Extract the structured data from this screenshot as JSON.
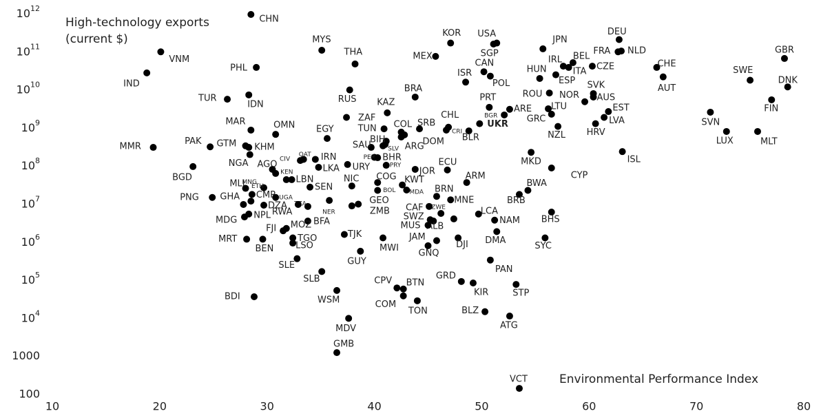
{
  "chart_data": {
    "type": "scatter",
    "annotations": [
      "High-technology exports",
      "(current $)",
      "Environmental Performance Index"
    ],
    "xlim": [
      10,
      80
    ],
    "xticks": [
      10,
      20,
      30,
      40,
      50,
      60,
      70,
      80
    ],
    "ylim": [
      100,
      1000000000000.0
    ],
    "ylog": true,
    "yticks": [
      100,
      1000,
      {
        "value": 10000.0,
        "label": "10",
        "sup": "4"
      },
      {
        "value": 100000.0,
        "label": "10",
        "sup": "5"
      },
      {
        "value": 1000000.0,
        "label": "10",
        "sup": "6"
      },
      {
        "value": 10000000.0,
        "label": "10",
        "sup": "7"
      },
      {
        "value": 100000000.0,
        "label": "10",
        "sup": "8"
      },
      {
        "value": 1000000000.0,
        "label": "10",
        "sup": "9"
      },
      {
        "value": 10000000000.0,
        "label": "10",
        "sup": "10"
      },
      {
        "value": 100000000000.0,
        "label": "10",
        "sup": "11"
      },
      {
        "value": 1000000000000.0,
        "label": "10",
        "sup": "12"
      }
    ],
    "grid": false,
    "color": "#000000",
    "labels": [
      "CHN",
      "VNM",
      "IND",
      "MYS",
      "PHL",
      "THA",
      "KOR",
      "USA",
      "SGP",
      "MEX",
      "ISR",
      "CAN",
      "POL",
      "JPN",
      "DEU",
      "FRA",
      "NLD",
      "IRL",
      "BEL",
      "ITA",
      "CZE",
      "HUN",
      "ESP",
      "CHE",
      "AUT",
      "GBR",
      "SWE",
      "DNK",
      "FIN",
      "SVN",
      "LUX",
      "MLT",
      "ISL",
      "TUR",
      "IDN",
      "RUS",
      "BRA",
      "KAZ",
      "ZAF",
      "TUN",
      "COL",
      "SRB",
      "CHL",
      "CRI",
      "UKR",
      "BGR",
      "PRT",
      "ARE",
      "BLR",
      "DOM",
      "ARG",
      "SLV",
      "BIH",
      "SAU",
      "EGY",
      "MAR",
      "OMN",
      "PAK",
      "GTM",
      "KHM",
      "MMR",
      "NGA",
      "AGO",
      "CIV",
      "QAT",
      "IRN",
      "LKA",
      "URY",
      "PER",
      "BHR",
      "PRY",
      "ECU",
      "JOR",
      "BGD",
      "KEN",
      "LBN",
      "NIC",
      "COG",
      "ARM",
      "MKD",
      "CYP",
      "KWT",
      "BOL",
      "MDA",
      "MLI",
      "MNG",
      "ETH",
      "SEN",
      "GHA",
      "CMR",
      "PNG",
      "UGA",
      "BRN",
      "BWA",
      "BRB",
      "DZA",
      "TZA",
      "RWA",
      "NER",
      "GEO",
      "ZMB",
      "MNE",
      "CAF",
      "ZWE",
      "LCA",
      "MDG",
      "NPL",
      "BFA",
      "SWZ",
      "NAM",
      "ALB",
      "FJI",
      "MOZ",
      "MUS",
      "BHS",
      "LSO",
      "TGO",
      "TJK",
      "MWI",
      "JAM",
      "DJI",
      "DMA",
      "SYC",
      "MRT",
      "BEN",
      "GNQ",
      "SLE",
      "GUY",
      "PAN",
      "SLB",
      "GRD",
      "CPV",
      "BTN",
      "COM",
      "KIR",
      "STP",
      "WSM",
      "TON",
      "BDI",
      "BLZ",
      "ATG",
      "MDV",
      "GMB",
      "VCT",
      "NOR",
      "SVK",
      "AUS",
      "EST",
      "LVA",
      "HRV",
      "LTU",
      "GRC",
      "NZL",
      "ROU",
      null,
      null,
      null
    ],
    "x": [
      28.5,
      20.1,
      18.8,
      35.1,
      29.0,
      38.2,
      47.1,
      51.4,
      51.1,
      45.7,
      48.5,
      50.2,
      50.8,
      55.7,
      62.8,
      62.7,
      63.0,
      57.6,
      58.5,
      58.1,
      60.3,
      55.4,
      56.9,
      66.3,
      66.9,
      78.2,
      75.0,
      78.5,
      77.0,
      71.3,
      72.8,
      75.7,
      63.1,
      26.3,
      28.3,
      37.7,
      43.8,
      41.2,
      37.4,
      40.9,
      42.5,
      44.2,
      46.9,
      46.7,
      49.8,
      52.1,
      50.7,
      52.6,
      48.8,
      42.5,
      41.1,
      41.0,
      40.8,
      39.7,
      35.6,
      28.5,
      30.8,
      24.7,
      28.0,
      28.3,
      19.4,
      28.4,
      30.5,
      33.1,
      33.4,
      34.5,
      34.8,
      37.5,
      40.0,
      40.3,
      41.1,
      46.8,
      43.8,
      23.1,
      30.8,
      32.3,
      37.9,
      40.3,
      48.6,
      54.6,
      56.5,
      42.6,
      40.3,
      43.0,
      28.5,
      28.0,
      29.7,
      34.0,
      27.8,
      28.6,
      24.9,
      30.8,
      45.8,
      54.3,
      53.5,
      29.7,
      33.8,
      32.9,
      35.8,
      38.5,
      37.9,
      47.1,
      45.1,
      46.2,
      49.7,
      27.9,
      28.3,
      33.8,
      45.2,
      51.2,
      45.5,
      31.5,
      31.8,
      45.0,
      56.5,
      32.4,
      32.4,
      37.2,
      40.8,
      45.8,
      47.8,
      51.4,
      55.9,
      28.1,
      29.6,
      45.0,
      32.8,
      38.7,
      50.8,
      35.1,
      48.1,
      42.1,
      42.7,
      42.7,
      49.2,
      53.2,
      36.5,
      44.0,
      28.8,
      50.3,
      52.6,
      37.6,
      36.5,
      53.5,
      59.6,
      60.4,
      60.4,
      61.8,
      61.4,
      60.6,
      56.2,
      56.5,
      57.1,
      56.3,
      31.8,
      42.8,
      47.4
    ],
    "values": [
      960000000000.0,
      100000000000.0,
      28000000000.0,
      110000000000.0,
      39000000000.0,
      48000000000.0,
      170000000000.0,
      170000000000.0,
      160000000000.0,
      76000000000.0,
      16000000000.0,
      30000000000.0,
      23000000000.0,
      120000000000.0,
      210000000000.0,
      100000000000.0,
      105000000000.0,
      42000000000.0,
      52000000000.0,
      39000000000.0,
      42000000000.0,
      20000000000.0,
      25000000000.0,
      39000000000.0,
      22000000000.0,
      67000000000.0,
      18000000000.0,
      12000000000.0,
      5500000000.0,
      2600000000.0,
      810000000.0,
      810000000.0,
      240000000.0,
      5700000000.0,
      7400000000.0,
      10000000000.0,
      6500000000.0,
      2500000000.0,
      1900000000.0,
      950000000.0,
      780000000.0,
      950000000.0,
      1050000000.0,
      880000000.0,
      1300000000.0,
      2200000000.0,
      3500000000.0,
      3100000000.0,
      840000000.0,
      580000000.0,
      450000000.0,
      370000000.0,
      340000000.0,
      310000000.0,
      530000000.0,
      880000000.0,
      680000000.0,
      320000000.0,
      340000000.0,
      310000000.0,
      310000000.0,
      200000000.0,
      82000000.0,
      140000000.0,
      150000000.0,
      150000000.0,
      93000000.0,
      110000000.0,
      170000000.0,
      166000000.0,
      105000000.0,
      79000000.0,
      82000000.0,
      97000000.0,
      64000000.0,
      44000000.0,
      30000000.0,
      37000000.0,
      37000000.0,
      230000000.0,
      89000000.0,
      32000000.0,
      23000000.0,
      23500000.0,
      12000000.0,
      26000000.0,
      27000000.0,
      28000000.0,
      9800000.0,
      18000000.0,
      15000000.0,
      15000000.0,
      16000000.0,
      23000000.0,
      18000000.0,
      9400000.0,
      8700000.0,
      9800000.0,
      12500000.0,
      10000000.0,
      9000000.0,
      13000000.0,
      8700000.0,
      5700000.0,
      5500000.0,
      4600000.0,
      5500000.0,
      3600000.0,
      3900000.0,
      3800000.0,
      3600000.0,
      2000000.0,
      2300000.0,
      2800000.0,
      6200000.0,
      950000.0,
      1300000.0,
      1600000.0,
      1300000.0,
      1100000.0,
      1300000.0,
      1900000.0,
      1300000.0,
      1200000.0,
      1200000.0,
      810000.0,
      370000.0,
      580000.0,
      340000.0,
      170000.0,
      93000.0,
      63000.0,
      59000.0,
      39000.0,
      85000.0,
      78000.0,
      54000.0,
      29000.0,
      37000.0,
      15000.0,
      11500.0,
      10000.0,
      1260,
      145,
      4900000000.0,
      8000000000.0,
      6500000000.0,
      2700000000.0,
      1900000000.0,
      1300000000.0,
      3200000000.0,
      2300000000.0,
      1100000000.0,
      8300000000.0,
      44000000.0,
      660000000.0,
      4100000.0
    ]
  }
}
